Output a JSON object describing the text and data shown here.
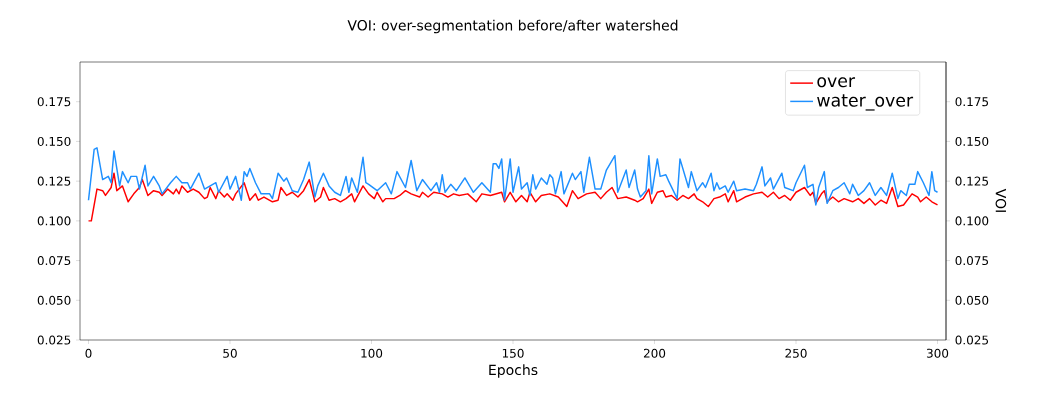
{
  "chart_data": {
    "type": "line",
    "title": "VOI: over-segmentation before/after watershed",
    "xlabel": "Epochs",
    "y2label": "VOI",
    "xlim": [
      -3,
      303
    ],
    "xticks": [
      0,
      50,
      100,
      150,
      200,
      250,
      300
    ],
    "ylim": [
      0.025,
      0.2
    ],
    "yticks": [
      0.025,
      {
        "value": 0.05,
        "label": "0.050"
      },
      0.075,
      {
        "value": 0.1,
        "label": "0.100"
      },
      0.125,
      {
        "value": 0.15,
        "label": "0.150"
      },
      0.175
    ],
    "y2lim": [
      0.025,
      0.2
    ],
    "y2ticks": [
      0.025,
      {
        "value": 0.05,
        "label": "0.050"
      },
      0.075,
      {
        "value": 0.1,
        "label": "0.100"
      },
      0.125,
      {
        "value": 0.15,
        "label": "0.150"
      },
      0.175
    ],
    "legend": "top right",
    "series": [
      {
        "name": "over",
        "color": "#ff0000",
        "x": [
          0,
          1,
          3,
          5,
          6,
          8,
          9,
          10,
          12,
          14,
          16,
          18,
          19,
          21,
          23,
          25,
          26,
          28,
          30,
          31,
          32,
          33,
          35,
          37,
          39,
          41,
          42,
          43,
          45,
          46,
          48,
          49,
          51,
          52,
          55,
          57,
          59,
          60,
          62,
          65,
          67,
          68,
          70,
          72,
          74,
          76,
          78,
          80,
          82,
          83,
          85,
          87,
          89,
          91,
          93,
          94,
          97,
          99,
          101,
          102,
          104,
          105,
          108,
          110,
          112,
          114,
          117,
          118,
          120,
          122,
          125,
          127,
          129,
          131,
          134,
          137,
          139,
          142,
          146,
          147,
          149,
          151,
          153,
          155,
          156,
          158,
          160,
          163,
          166,
          169,
          171,
          173,
          176,
          179,
          181,
          183,
          185,
          187,
          190,
          193,
          194,
          196,
          198,
          199,
          201,
          203,
          204,
          206,
          208,
          210,
          212,
          214,
          215,
          217,
          219,
          221,
          223,
          225,
          226,
          228,
          229,
          232,
          235,
          238,
          240,
          242,
          244,
          246,
          248,
          250,
          253,
          255,
          256,
          257,
          259,
          260,
          261,
          263,
          265,
          267,
          270,
          272,
          274,
          276,
          278,
          280,
          282,
          284,
          286,
          288,
          291,
          293,
          294,
          296,
          298,
          300
        ],
        "values": [
          0.1,
          0.1,
          0.12,
          0.119,
          0.116,
          0.121,
          0.13,
          0.119,
          0.122,
          0.112,
          0.117,
          0.121,
          0.126,
          0.116,
          0.119,
          0.118,
          0.116,
          0.12,
          0.117,
          0.12,
          0.117,
          0.122,
          0.118,
          0.12,
          0.118,
          0.114,
          0.115,
          0.121,
          0.114,
          0.119,
          0.115,
          0.117,
          0.113,
          0.117,
          0.124,
          0.113,
          0.117,
          0.113,
          0.115,
          0.112,
          0.113,
          0.121,
          0.116,
          0.118,
          0.115,
          0.119,
          0.126,
          0.112,
          0.115,
          0.121,
          0.113,
          0.114,
          0.112,
          0.114,
          0.117,
          0.112,
          0.122,
          0.117,
          0.114,
          0.118,
          0.112,
          0.114,
          0.114,
          0.116,
          0.119,
          0.117,
          0.115,
          0.118,
          0.115,
          0.118,
          0.117,
          0.115,
          0.117,
          0.116,
          0.117,
          0.112,
          0.117,
          0.116,
          0.118,
          0.112,
          0.118,
          0.112,
          0.116,
          0.112,
          0.118,
          0.112,
          0.116,
          0.117,
          0.115,
          0.109,
          0.119,
          0.114,
          0.117,
          0.118,
          0.114,
          0.118,
          0.121,
          0.114,
          0.115,
          0.113,
          0.112,
          0.114,
          0.12,
          0.111,
          0.118,
          0.119,
          0.115,
          0.116,
          0.113,
          0.116,
          0.114,
          0.117,
          0.114,
          0.112,
          0.109,
          0.114,
          0.115,
          0.117,
          0.112,
          0.119,
          0.112,
          0.115,
          0.117,
          0.118,
          0.115,
          0.118,
          0.114,
          0.116,
          0.113,
          0.118,
          0.121,
          0.116,
          0.118,
          0.111,
          0.117,
          0.119,
          0.112,
          0.115,
          0.112,
          0.114,
          0.112,
          0.114,
          0.111,
          0.114,
          0.11,
          0.113,
          0.111,
          0.121,
          0.109,
          0.11,
          0.117,
          0.115,
          0.112,
          0.115,
          0.112,
          0.11
        ]
      },
      {
        "name": "water_over",
        "color": "#1e90ff",
        "x": [
          0,
          2,
          3,
          5,
          7,
          8,
          9,
          11,
          12,
          14,
          15,
          17,
          18,
          20,
          21,
          23,
          25,
          26,
          29,
          31,
          33,
          35,
          36,
          39,
          41,
          43,
          45,
          46,
          49,
          50,
          52,
          54,
          55,
          56,
          57,
          59,
          61,
          64,
          65,
          67,
          69,
          70,
          72,
          74,
          76,
          78,
          80,
          81,
          83,
          85,
          87,
          89,
          91,
          92,
          93,
          95,
          97,
          98,
          99,
          102,
          105,
          107,
          109,
          112,
          114,
          116,
          118,
          121,
          123,
          124,
          125,
          126,
          128,
          130,
          133,
          136,
          139,
          142,
          143,
          144,
          145,
          146,
          147,
          149,
          150,
          152,
          153,
          155,
          156,
          157,
          158,
          160,
          162,
          163,
          164,
          165,
          167,
          168,
          171,
          172,
          174,
          175,
          177,
          179,
          181,
          183,
          186,
          187,
          190,
          191,
          193,
          194,
          195,
          197,
          198,
          199,
          201,
          202,
          204,
          205,
          208,
          209,
          211,
          212,
          213,
          215,
          217,
          218,
          220,
          221,
          222,
          223,
          225,
          226,
          228,
          229,
          232,
          235,
          236,
          238,
          239,
          241,
          242,
          245,
          246,
          249,
          250,
          253,
          254,
          256,
          257,
          258,
          260,
          261,
          263,
          265,
          267,
          269,
          270,
          272,
          274,
          276,
          278,
          280,
          282,
          284,
          286,
          287,
          289,
          290,
          292,
          293,
          295,
          297,
          298,
          299,
          300
        ],
        "values": [
          0.113,
          0.145,
          0.146,
          0.126,
          0.128,
          0.124,
          0.144,
          0.122,
          0.131,
          0.124,
          0.128,
          0.128,
          0.12,
          0.135,
          0.122,
          0.128,
          0.122,
          0.117,
          0.124,
          0.128,
          0.124,
          0.124,
          0.12,
          0.13,
          0.12,
          0.122,
          0.124,
          0.118,
          0.128,
          0.12,
          0.128,
          0.113,
          0.131,
          0.128,
          0.133,
          0.124,
          0.117,
          0.117,
          0.114,
          0.13,
          0.125,
          0.127,
          0.119,
          0.118,
          0.126,
          0.137,
          0.115,
          0.122,
          0.13,
          0.122,
          0.118,
          0.116,
          0.128,
          0.118,
          0.127,
          0.118,
          0.14,
          0.124,
          0.123,
          0.119,
          0.124,
          0.117,
          0.131,
          0.121,
          0.138,
          0.119,
          0.126,
          0.119,
          0.124,
          0.118,
          0.129,
          0.118,
          0.123,
          0.119,
          0.127,
          0.118,
          0.124,
          0.118,
          0.136,
          0.136,
          0.133,
          0.139,
          0.113,
          0.139,
          0.118,
          0.134,
          0.12,
          0.124,
          0.116,
          0.129,
          0.12,
          0.127,
          0.123,
          0.129,
          0.127,
          0.117,
          0.131,
          0.117,
          0.13,
          0.126,
          0.131,
          0.118,
          0.14,
          0.12,
          0.12,
          0.132,
          0.141,
          0.118,
          0.132,
          0.121,
          0.132,
          0.12,
          0.115,
          0.119,
          0.141,
          0.117,
          0.139,
          0.128,
          0.129,
          0.125,
          0.114,
          0.139,
          0.127,
          0.121,
          0.131,
          0.119,
          0.124,
          0.121,
          0.13,
          0.119,
          0.124,
          0.12,
          0.122,
          0.118,
          0.125,
          0.119,
          0.12,
          0.119,
          0.123,
          0.134,
          0.122,
          0.127,
          0.12,
          0.13,
          0.121,
          0.119,
          0.124,
          0.135,
          0.121,
          0.123,
          0.11,
          0.121,
          0.131,
          0.111,
          0.119,
          0.121,
          0.124,
          0.117,
          0.123,
          0.116,
          0.119,
          0.124,
          0.116,
          0.121,
          0.116,
          0.13,
          0.114,
          0.119,
          0.116,
          0.123,
          0.123,
          0.131,
          0.124,
          0.116,
          0.131,
          0.119,
          0.118
        ]
      }
    ]
  }
}
